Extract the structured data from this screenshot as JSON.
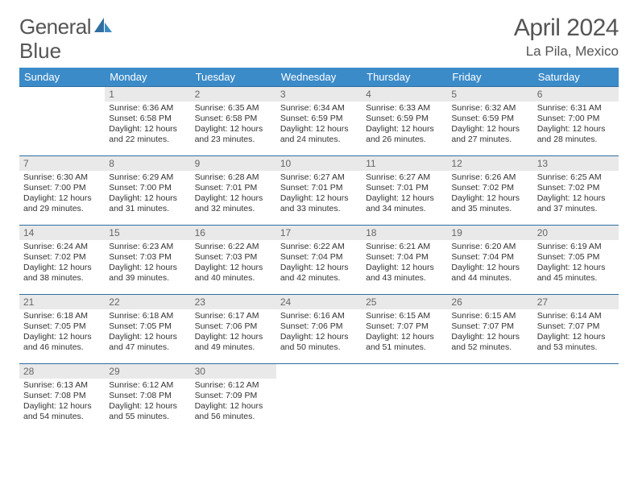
{
  "logo": {
    "word1": "General",
    "word2": "Blue"
  },
  "title": "April 2024",
  "location": "La Pila, Mexico",
  "header_bg": "#3b8bc9",
  "daynum_bg": "#e9e9e9",
  "row_border": "#2f6ea0",
  "weekdays": [
    "Sunday",
    "Monday",
    "Tuesday",
    "Wednesday",
    "Thursday",
    "Friday",
    "Saturday"
  ],
  "weeks": [
    [
      {
        "n": "",
        "sr": "",
        "ss": "",
        "dl": ""
      },
      {
        "n": "1",
        "sr": "Sunrise: 6:36 AM",
        "ss": "Sunset: 6:58 PM",
        "dl": "Daylight: 12 hours and 22 minutes."
      },
      {
        "n": "2",
        "sr": "Sunrise: 6:35 AM",
        "ss": "Sunset: 6:58 PM",
        "dl": "Daylight: 12 hours and 23 minutes."
      },
      {
        "n": "3",
        "sr": "Sunrise: 6:34 AM",
        "ss": "Sunset: 6:59 PM",
        "dl": "Daylight: 12 hours and 24 minutes."
      },
      {
        "n": "4",
        "sr": "Sunrise: 6:33 AM",
        "ss": "Sunset: 6:59 PM",
        "dl": "Daylight: 12 hours and 26 minutes."
      },
      {
        "n": "5",
        "sr": "Sunrise: 6:32 AM",
        "ss": "Sunset: 6:59 PM",
        "dl": "Daylight: 12 hours and 27 minutes."
      },
      {
        "n": "6",
        "sr": "Sunrise: 6:31 AM",
        "ss": "Sunset: 7:00 PM",
        "dl": "Daylight: 12 hours and 28 minutes."
      }
    ],
    [
      {
        "n": "7",
        "sr": "Sunrise: 6:30 AM",
        "ss": "Sunset: 7:00 PM",
        "dl": "Daylight: 12 hours and 29 minutes."
      },
      {
        "n": "8",
        "sr": "Sunrise: 6:29 AM",
        "ss": "Sunset: 7:00 PM",
        "dl": "Daylight: 12 hours and 31 minutes."
      },
      {
        "n": "9",
        "sr": "Sunrise: 6:28 AM",
        "ss": "Sunset: 7:01 PM",
        "dl": "Daylight: 12 hours and 32 minutes."
      },
      {
        "n": "10",
        "sr": "Sunrise: 6:27 AM",
        "ss": "Sunset: 7:01 PM",
        "dl": "Daylight: 12 hours and 33 minutes."
      },
      {
        "n": "11",
        "sr": "Sunrise: 6:27 AM",
        "ss": "Sunset: 7:01 PM",
        "dl": "Daylight: 12 hours and 34 minutes."
      },
      {
        "n": "12",
        "sr": "Sunrise: 6:26 AM",
        "ss": "Sunset: 7:02 PM",
        "dl": "Daylight: 12 hours and 35 minutes."
      },
      {
        "n": "13",
        "sr": "Sunrise: 6:25 AM",
        "ss": "Sunset: 7:02 PM",
        "dl": "Daylight: 12 hours and 37 minutes."
      }
    ],
    [
      {
        "n": "14",
        "sr": "Sunrise: 6:24 AM",
        "ss": "Sunset: 7:02 PM",
        "dl": "Daylight: 12 hours and 38 minutes."
      },
      {
        "n": "15",
        "sr": "Sunrise: 6:23 AM",
        "ss": "Sunset: 7:03 PM",
        "dl": "Daylight: 12 hours and 39 minutes."
      },
      {
        "n": "16",
        "sr": "Sunrise: 6:22 AM",
        "ss": "Sunset: 7:03 PM",
        "dl": "Daylight: 12 hours and 40 minutes."
      },
      {
        "n": "17",
        "sr": "Sunrise: 6:22 AM",
        "ss": "Sunset: 7:04 PM",
        "dl": "Daylight: 12 hours and 42 minutes."
      },
      {
        "n": "18",
        "sr": "Sunrise: 6:21 AM",
        "ss": "Sunset: 7:04 PM",
        "dl": "Daylight: 12 hours and 43 minutes."
      },
      {
        "n": "19",
        "sr": "Sunrise: 6:20 AM",
        "ss": "Sunset: 7:04 PM",
        "dl": "Daylight: 12 hours and 44 minutes."
      },
      {
        "n": "20",
        "sr": "Sunrise: 6:19 AM",
        "ss": "Sunset: 7:05 PM",
        "dl": "Daylight: 12 hours and 45 minutes."
      }
    ],
    [
      {
        "n": "21",
        "sr": "Sunrise: 6:18 AM",
        "ss": "Sunset: 7:05 PM",
        "dl": "Daylight: 12 hours and 46 minutes."
      },
      {
        "n": "22",
        "sr": "Sunrise: 6:18 AM",
        "ss": "Sunset: 7:05 PM",
        "dl": "Daylight: 12 hours and 47 minutes."
      },
      {
        "n": "23",
        "sr": "Sunrise: 6:17 AM",
        "ss": "Sunset: 7:06 PM",
        "dl": "Daylight: 12 hours and 49 minutes."
      },
      {
        "n": "24",
        "sr": "Sunrise: 6:16 AM",
        "ss": "Sunset: 7:06 PM",
        "dl": "Daylight: 12 hours and 50 minutes."
      },
      {
        "n": "25",
        "sr": "Sunrise: 6:15 AM",
        "ss": "Sunset: 7:07 PM",
        "dl": "Daylight: 12 hours and 51 minutes."
      },
      {
        "n": "26",
        "sr": "Sunrise: 6:15 AM",
        "ss": "Sunset: 7:07 PM",
        "dl": "Daylight: 12 hours and 52 minutes."
      },
      {
        "n": "27",
        "sr": "Sunrise: 6:14 AM",
        "ss": "Sunset: 7:07 PM",
        "dl": "Daylight: 12 hours and 53 minutes."
      }
    ],
    [
      {
        "n": "28",
        "sr": "Sunrise: 6:13 AM",
        "ss": "Sunset: 7:08 PM",
        "dl": "Daylight: 12 hours and 54 minutes."
      },
      {
        "n": "29",
        "sr": "Sunrise: 6:12 AM",
        "ss": "Sunset: 7:08 PM",
        "dl": "Daylight: 12 hours and 55 minutes."
      },
      {
        "n": "30",
        "sr": "Sunrise: 6:12 AM",
        "ss": "Sunset: 7:09 PM",
        "dl": "Daylight: 12 hours and 56 minutes."
      },
      {
        "n": "",
        "sr": "",
        "ss": "",
        "dl": ""
      },
      {
        "n": "",
        "sr": "",
        "ss": "",
        "dl": ""
      },
      {
        "n": "",
        "sr": "",
        "ss": "",
        "dl": ""
      },
      {
        "n": "",
        "sr": "",
        "ss": "",
        "dl": ""
      }
    ]
  ]
}
